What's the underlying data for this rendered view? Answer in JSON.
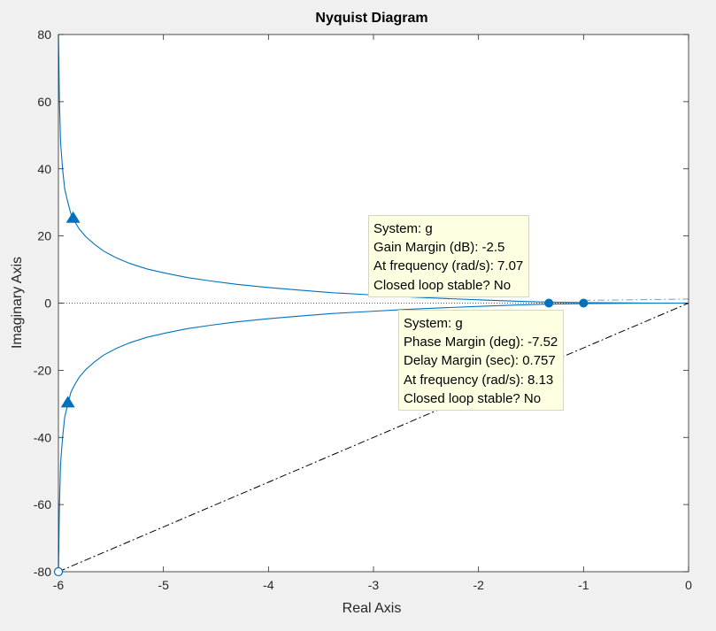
{
  "chart_data": {
    "type": "line",
    "title": "Nyquist Diagram",
    "xlabel": "Real Axis",
    "ylabel": "Imaginary Axis",
    "xlim": [
      -6,
      0
    ],
    "ylim": [
      -80,
      80
    ],
    "xticks": [
      "-6",
      "-5",
      "-4",
      "-3",
      "-2",
      "-1",
      "0"
    ],
    "yticks": [
      "80",
      "60",
      "40",
      "20",
      "0",
      "-20",
      "-40",
      "-60",
      "-80"
    ],
    "grid": false,
    "series": [
      {
        "style": "solid",
        "color": "#0072bd",
        "x": [
          -6.0,
          -5.99,
          -5.98,
          -5.96,
          -5.94,
          -5.91,
          -5.88,
          -5.84,
          -5.8,
          -5.74,
          -5.66,
          -5.57,
          -5.45,
          -5.32,
          -5.16,
          -4.98,
          -4.77,
          -4.55,
          -4.3,
          -4.02,
          -3.72,
          -3.4,
          -3.05,
          -2.7,
          -2.34,
          -1.97,
          -1.62,
          -1.33,
          -1.0,
          -0.6,
          -0.3,
          0.0
        ],
        "y": [
          80,
          60,
          48,
          40,
          34,
          30,
          26.5,
          24,
          22,
          19.8,
          17.6,
          15.5,
          13.5,
          11.8,
          10.2,
          8.9,
          7.6,
          6.6,
          5.6,
          4.7,
          3.9,
          3.1,
          2.5,
          1.9,
          1.4,
          0.95,
          0.55,
          0.3,
          0.15,
          0.05,
          0.0,
          0.0
        ]
      },
      {
        "style": "solid",
        "color": "#0072bd",
        "x": [
          -6.0,
          -5.99,
          -5.98,
          -5.96,
          -5.94,
          -5.91,
          -5.88,
          -5.84,
          -5.8,
          -5.74,
          -5.66,
          -5.57,
          -5.45,
          -5.32,
          -5.16,
          -4.98,
          -4.77,
          -4.55,
          -4.3,
          -4.02,
          -3.72,
          -3.4,
          -3.05,
          -2.7,
          -2.34,
          -1.97,
          -1.62,
          -1.33,
          -1.0,
          -0.6,
          -0.3,
          0.0
        ],
        "y": [
          -80,
          -60,
          -48,
          -40,
          -34,
          -30,
          -26.5,
          -24,
          -22,
          -19.8,
          -17.6,
          -15.5,
          -13.5,
          -11.8,
          -10.2,
          -8.9,
          -7.6,
          -6.6,
          -5.6,
          -4.7,
          -3.9,
          -3.1,
          -2.5,
          -1.9,
          -1.4,
          -0.95,
          -0.55,
          -0.3,
          -0.15,
          -0.05,
          0.0,
          0.0
        ]
      },
      {
        "style": "dashdot",
        "color": "#000000",
        "x": [
          -6,
          0
        ],
        "y": [
          -80,
          0
        ]
      },
      {
        "style": "dashdot",
        "color": "#7f9fbf",
        "x": [
          -1.0,
          0.0
        ],
        "y": [
          0.8,
          1.2
        ]
      }
    ],
    "arrows": [
      {
        "x": -5.86,
        "y": 25.5,
        "dir": "up"
      },
      {
        "x": -5.91,
        "y": -29.5,
        "dir": "up"
      }
    ],
    "markers": [
      {
        "x": -1.33,
        "y": 0,
        "label_ref": "gain"
      },
      {
        "x": -1.0,
        "y": 0,
        "label_ref": "phase"
      }
    ],
    "endpoint_marker": {
      "x": -6,
      "y": -80
    },
    "datatips": {
      "gain": [
        "System: g",
        "Gain Margin (dB): -2.5",
        "At frequency (rad/s): 7.07",
        "Closed loop stable? No"
      ],
      "phase": [
        "System: g",
        "Phase Margin (deg): -7.52",
        "Delay Margin (sec): 0.757",
        "At frequency (rad/s): 8.13",
        "Closed loop stable? No"
      ]
    }
  }
}
